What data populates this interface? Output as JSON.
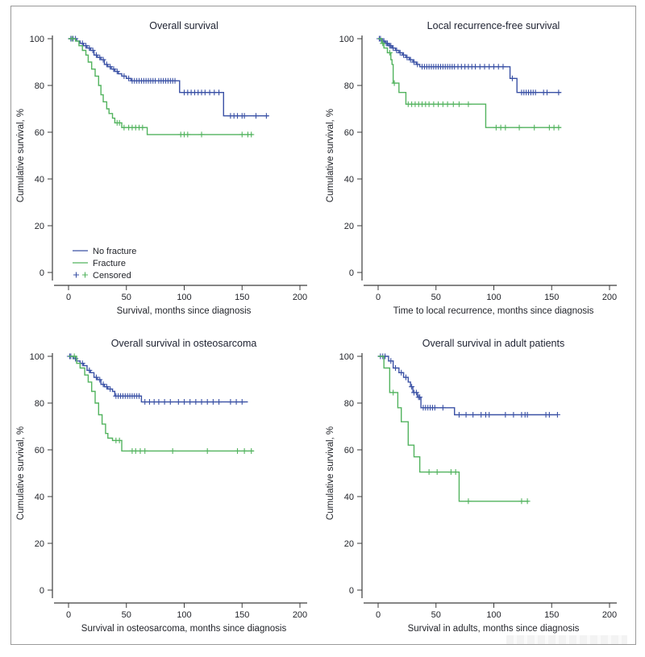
{
  "figure": {
    "background": "#ffffff",
    "border_color": "#9a9a9a"
  },
  "colors": {
    "no_fracture": "#3a51a5",
    "fracture": "#52b35e",
    "axis": "#3c3c3c",
    "text": "#23252b"
  },
  "legend": {
    "items": [
      {
        "label": "No fracture",
        "type": "line",
        "color": "#3a51a5"
      },
      {
        "label": "Fracture",
        "type": "line",
        "color": "#52b35e"
      },
      {
        "label": "Censored",
        "type": "plus",
        "colors": [
          "#3a51a5",
          "#52b35e"
        ]
      }
    ],
    "position": "lower-left of first panel"
  },
  "axes": {
    "x_ticks": [
      0,
      50,
      100,
      150,
      200
    ],
    "y_ticks": [
      0,
      20,
      40,
      60,
      80,
      100
    ],
    "xlim": [
      0,
      200
    ],
    "ylim": [
      0,
      100
    ],
    "grid": false
  },
  "chart_data": [
    {
      "type": "line",
      "subtype": "kaplan-meier-step",
      "title": "Overall survival",
      "xlabel": "Survival, months since diagnosis",
      "ylabel": "Cumulative survival, %",
      "series": [
        {
          "name": "No fracture",
          "color": "#3a51a5",
          "steps": [
            [
              0,
              100
            ],
            [
              7,
              99
            ],
            [
              10,
              98
            ],
            [
              13,
              97
            ],
            [
              16,
              96
            ],
            [
              19,
              95
            ],
            [
              22,
              93
            ],
            [
              25,
              92
            ],
            [
              28,
              91
            ],
            [
              31,
              89
            ],
            [
              34,
              88
            ],
            [
              37,
              87
            ],
            [
              40,
              86
            ],
            [
              43,
              85
            ],
            [
              46,
              84
            ],
            [
              50,
              83
            ],
            [
              54,
              82
            ],
            [
              96,
              77
            ],
            [
              134,
              67
            ],
            [
              173,
              67
            ]
          ],
          "censored": [
            2,
            4,
            6,
            12,
            15,
            18,
            21,
            24,
            27,
            30,
            33,
            36,
            39,
            42,
            48,
            52,
            55,
            57,
            59,
            61,
            63,
            65,
            67,
            69,
            71,
            73,
            75,
            78,
            80,
            82,
            84,
            86,
            88,
            90,
            92,
            100,
            103,
            106,
            109,
            112,
            115,
            118,
            122,
            126,
            130,
            140,
            143,
            146,
            150,
            152,
            162,
            171
          ]
        },
        {
          "name": "Fracture",
          "color": "#52b35e",
          "steps": [
            [
              0,
              100
            ],
            [
              6,
              99
            ],
            [
              9,
              97
            ],
            [
              12,
              95
            ],
            [
              15,
              93
            ],
            [
              17,
              90
            ],
            [
              20,
              87
            ],
            [
              23,
              84
            ],
            [
              26,
              80
            ],
            [
              28,
              76
            ],
            [
              30,
              73
            ],
            [
              33,
              70
            ],
            [
              35,
              68
            ],
            [
              38,
              66
            ],
            [
              40,
              64
            ],
            [
              46,
              62
            ],
            [
              68,
              59
            ],
            [
              159,
              59
            ]
          ],
          "censored": [
            3,
            42,
            44,
            48,
            52,
            55,
            58,
            61,
            64,
            97,
            100,
            103,
            115,
            150,
            155,
            158
          ]
        }
      ]
    },
    {
      "type": "line",
      "subtype": "kaplan-meier-step",
      "title": "Local recurrence-free survival",
      "xlabel": "Time to local recurrence, months since diagnosis",
      "ylabel": "Cumulative survival, %",
      "series": [
        {
          "name": "No fracture",
          "color": "#3a51a5",
          "steps": [
            [
              0,
              100
            ],
            [
              3,
              99
            ],
            [
              6,
              98
            ],
            [
              9,
              97
            ],
            [
              12,
              96
            ],
            [
              15,
              95
            ],
            [
              18,
              94
            ],
            [
              21,
              93
            ],
            [
              24,
              92
            ],
            [
              27,
              91
            ],
            [
              30,
              90
            ],
            [
              33,
              89
            ],
            [
              36,
              88
            ],
            [
              114,
              83
            ],
            [
              120,
              77
            ],
            [
              158,
              77
            ]
          ],
          "censored": [
            1,
            2,
            4,
            5,
            7,
            8,
            10,
            11,
            13,
            16,
            19,
            22,
            25,
            28,
            31,
            34,
            38,
            40,
            42,
            44,
            46,
            48,
            50,
            52,
            54,
            56,
            58,
            60,
            62,
            64,
            66,
            69,
            72,
            75,
            78,
            81,
            84,
            88,
            92,
            96,
            100,
            104,
            108,
            116,
            124,
            126,
            128,
            130,
            132,
            134,
            136,
            143,
            146,
            156
          ]
        },
        {
          "name": "Fracture",
          "color": "#52b35e",
          "steps": [
            [
              0,
              100
            ],
            [
              3,
              98
            ],
            [
              5,
              96
            ],
            [
              8,
              94
            ],
            [
              11,
              91
            ],
            [
              12,
              89
            ],
            [
              13,
              81
            ],
            [
              18,
              77
            ],
            [
              24,
              72
            ],
            [
              93,
              62
            ],
            [
              158,
              62
            ]
          ],
          "censored": [
            4,
            10,
            14,
            26,
            29,
            32,
            35,
            38,
            41,
            44,
            48,
            52,
            56,
            60,
            65,
            70,
            78,
            102,
            106,
            110,
            122,
            135,
            148,
            152,
            156
          ]
        }
      ]
    },
    {
      "type": "line",
      "subtype": "kaplan-meier-step",
      "title": "Overall survival in osteosarcoma",
      "xlabel": "Survival in osteosarcoma, months since diagnosis",
      "ylabel": "Cumulative survival, %",
      "series": [
        {
          "name": "No fracture",
          "color": "#3a51a5",
          "steps": [
            [
              0,
              100
            ],
            [
              4,
              99
            ],
            [
              7,
              98
            ],
            [
              10,
              97
            ],
            [
              13,
              96
            ],
            [
              16,
              94
            ],
            [
              19,
              93
            ],
            [
              22,
              91
            ],
            [
              25,
              90
            ],
            [
              28,
              88
            ],
            [
              31,
              87
            ],
            [
              34,
              86
            ],
            [
              38,
              85
            ],
            [
              40,
              83
            ],
            [
              63,
              80.5
            ],
            [
              155,
              80.5
            ]
          ],
          "censored": [
            1,
            2,
            6,
            12,
            18,
            24,
            27,
            30,
            33,
            36,
            41,
            43,
            45,
            47,
            49,
            51,
            53,
            55,
            57,
            59,
            61,
            66,
            70,
            74,
            78,
            83,
            88,
            95,
            100,
            105,
            110,
            115,
            120,
            125,
            130,
            140,
            145,
            150
          ]
        },
        {
          "name": "Fracture",
          "color": "#52b35e",
          "steps": [
            [
              0,
              100
            ],
            [
              7,
              97
            ],
            [
              10,
              95
            ],
            [
              14,
              92
            ],
            [
              17,
              89
            ],
            [
              20,
              85
            ],
            [
              23,
              80
            ],
            [
              26,
              75
            ],
            [
              29,
              71
            ],
            [
              32,
              67
            ],
            [
              34,
              65
            ],
            [
              38,
              64
            ],
            [
              46,
              59.5
            ],
            [
              160,
              59.5
            ]
          ],
          "censored": [
            5,
            41,
            44,
            55,
            58,
            62,
            66,
            90,
            120,
            146,
            152,
            158
          ]
        }
      ]
    },
    {
      "type": "line",
      "subtype": "kaplan-meier-step",
      "title": "Overall survival in adult patients",
      "xlabel": "Survival in adults, months since diagnosis",
      "ylabel": "Cumulative survival, %",
      "series": [
        {
          "name": "No fracture",
          "color": "#3a51a5",
          "steps": [
            [
              0,
              100
            ],
            [
              9,
              98
            ],
            [
              13,
              95
            ],
            [
              18,
              93
            ],
            [
              22,
              91
            ],
            [
              26,
              89
            ],
            [
              28,
              87
            ],
            [
              30,
              84.5
            ],
            [
              34,
              82.5
            ],
            [
              37,
              78
            ],
            [
              66,
              75
            ],
            [
              155,
              75
            ]
          ],
          "censored": [
            2,
            4,
            6,
            11,
            15,
            20,
            24,
            29,
            31,
            33,
            35,
            36,
            39,
            41,
            43,
            45,
            47,
            49,
            56,
            70,
            76,
            82,
            89,
            93,
            96,
            110,
            117,
            124,
            127,
            129,
            145,
            148,
            155
          ]
        },
        {
          "name": "Fracture",
          "color": "#52b35e",
          "steps": [
            [
              0,
              100
            ],
            [
              5,
              95
            ],
            [
              10,
              84.5
            ],
            [
              17,
              78
            ],
            [
              20,
              72
            ],
            [
              26,
              62
            ],
            [
              31,
              57
            ],
            [
              36,
              50.5
            ],
            [
              70,
              38
            ],
            [
              130,
              38
            ]
          ],
          "censored": [
            13,
            44,
            51,
            63,
            67,
            78,
            124,
            129
          ]
        }
      ]
    }
  ]
}
